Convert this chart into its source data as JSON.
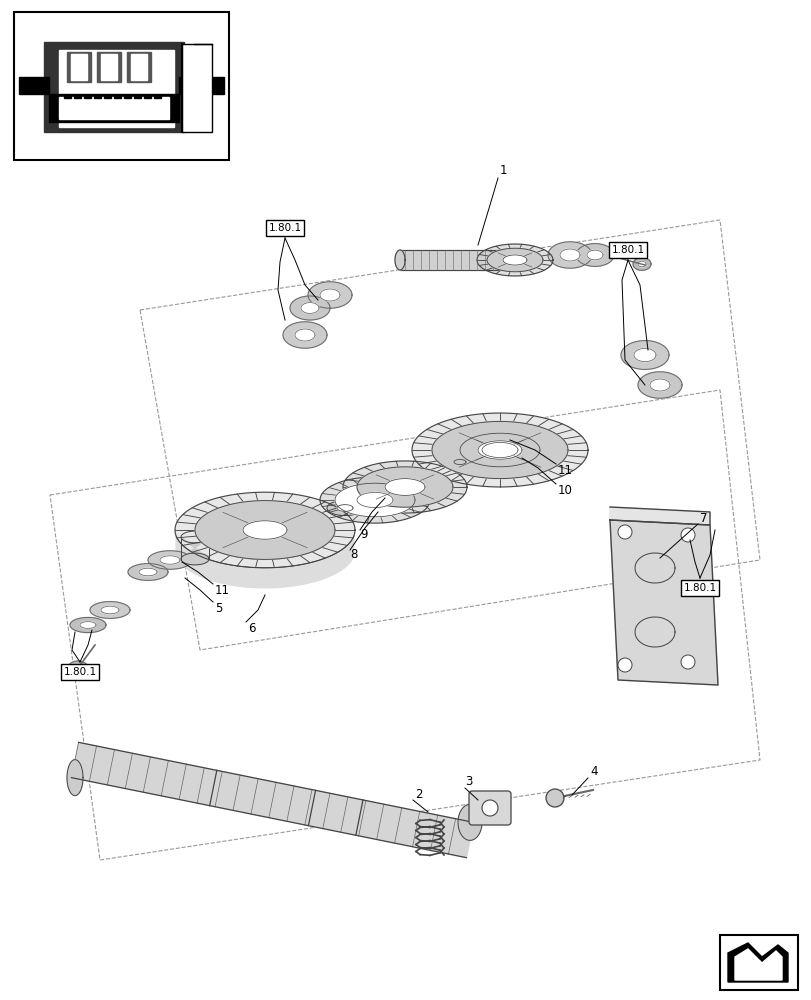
{
  "bg_color": "#ffffff",
  "line_color": "#000000",
  "gray1": "#cccccc",
  "gray2": "#999999",
  "gray3": "#666666",
  "gray4": "#444444",
  "ref_box_label": "1.80.1",
  "page_width": 8.12,
  "page_height": 10.0
}
